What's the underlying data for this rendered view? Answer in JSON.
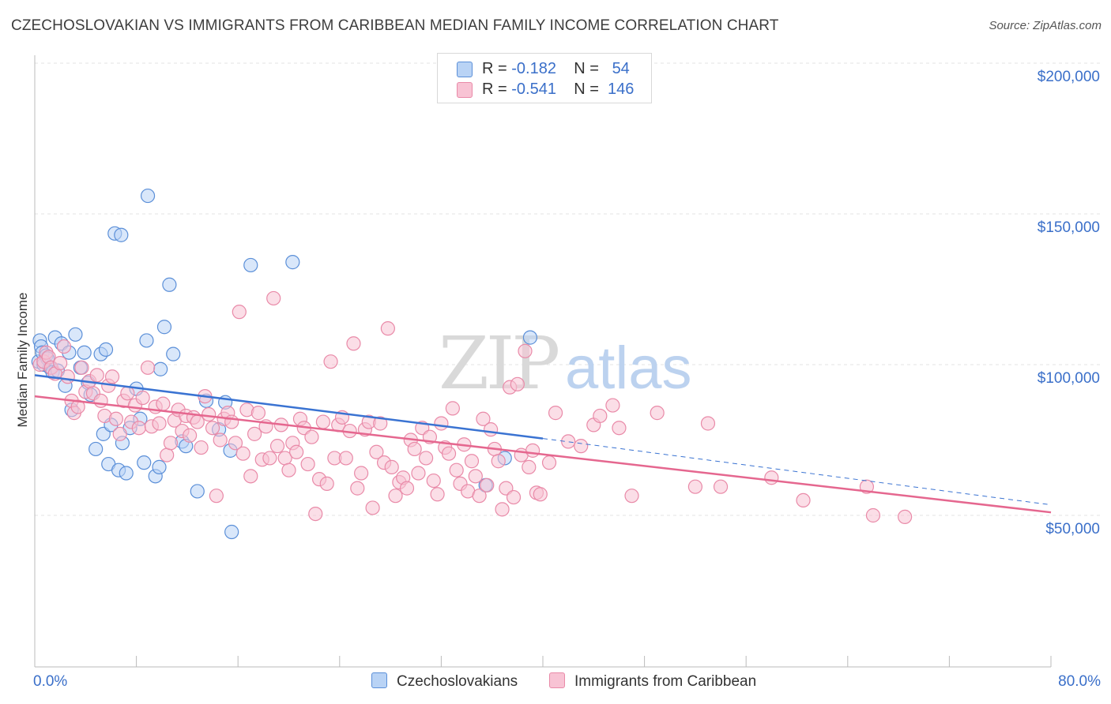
{
  "title": "CZECHOSLOVAKIAN VS IMMIGRANTS FROM CARIBBEAN MEDIAN FAMILY INCOME CORRELATION CHART",
  "source": "Source: ZipAtlas.com",
  "watermark": {
    "zip": "ZIP",
    "atlas": "atlas"
  },
  "legend_top": [
    {
      "r_label": "R =",
      "r_value": "-0.182",
      "n_label": "N =",
      "n_value": "54"
    },
    {
      "r_label": "R =",
      "r_value": "-0.541",
      "n_label": "N =",
      "n_value": "146"
    }
  ],
  "colors": {
    "czech_fill": "#b9d3f5",
    "czech_stroke": "#5b8fd8",
    "czech_line": "#3a73d2",
    "carib_fill": "#f8c3d4",
    "carib_stroke": "#e98aa8",
    "carib_line": "#e5678f",
    "axis_label": "#3a6fc9",
    "grid": "#e3e3e3"
  },
  "chart_data": {
    "type": "scatter",
    "title": "CZECHOSLOVAKIAN VS IMMIGRANTS FROM CARIBBEAN MEDIAN FAMILY INCOME CORRELATION CHART",
    "xlabel": "",
    "ylabel": "Median Family Income",
    "xlim": [
      0,
      80
    ],
    "ylim": [
      0,
      205000
    ],
    "x_tick_labels": [
      "0.0%",
      "80.0%"
    ],
    "y_ticks": [
      50000,
      100000,
      150000,
      200000
    ],
    "y_tick_labels": [
      "$50,000",
      "$100,000",
      "$150,000",
      "$200,000"
    ],
    "legend_position": "bottom",
    "grid": true,
    "series": [
      {
        "name": "Czechoslovakians",
        "r": -0.182,
        "n": 54,
        "trend": {
          "x0": 0,
          "y0": 96500,
          "x1": 40,
          "y1": 75500,
          "dashed_to_x": 80,
          "dashed_to_y": 53500
        },
        "points": [
          [
            0.3,
            101000
          ],
          [
            0.4,
            108000
          ],
          [
            0.5,
            106000
          ],
          [
            0.6,
            104000
          ],
          [
            0.7,
            100000
          ],
          [
            0.9,
            103000
          ],
          [
            1.0,
            102000
          ],
          [
            1.2,
            99000
          ],
          [
            1.4,
            97500
          ],
          [
            1.6,
            109000
          ],
          [
            1.8,
            98000
          ],
          [
            2.1,
            107000
          ],
          [
            2.4,
            93000
          ],
          [
            2.7,
            104000
          ],
          [
            2.9,
            85000
          ],
          [
            3.2,
            110000
          ],
          [
            3.6,
            99000
          ],
          [
            3.9,
            104000
          ],
          [
            4.2,
            94000
          ],
          [
            4.4,
            90000
          ],
          [
            4.8,
            72000
          ],
          [
            5.2,
            103500
          ],
          [
            5.4,
            77000
          ],
          [
            5.6,
            105000
          ],
          [
            5.8,
            67000
          ],
          [
            6.0,
            80000
          ],
          [
            6.3,
            143500
          ],
          [
            6.6,
            65000
          ],
          [
            6.8,
            143000
          ],
          [
            6.9,
            74000
          ],
          [
            7.2,
            64000
          ],
          [
            7.5,
            79000
          ],
          [
            8.0,
            92000
          ],
          [
            8.3,
            82000
          ],
          [
            8.6,
            67500
          ],
          [
            8.8,
            108000
          ],
          [
            8.9,
            156000
          ],
          [
            9.5,
            63000
          ],
          [
            9.8,
            66000
          ],
          [
            9.9,
            98500
          ],
          [
            10.2,
            112500
          ],
          [
            10.6,
            126500
          ],
          [
            10.9,
            103500
          ],
          [
            11.6,
            74500
          ],
          [
            11.9,
            73000
          ],
          [
            12.8,
            58000
          ],
          [
            13.5,
            88000
          ],
          [
            14.5,
            78500
          ],
          [
            15.0,
            87500
          ],
          [
            15.4,
            71500
          ],
          [
            15.5,
            44500
          ],
          [
            17.0,
            133000
          ],
          [
            20.3,
            134000
          ],
          [
            35.5,
            60000
          ],
          [
            37.0,
            69000
          ],
          [
            39.0,
            109000
          ]
        ]
      },
      {
        "name": "Immigrants from Caribbean",
        "r": -0.541,
        "n": 146,
        "trend": {
          "x0": 0,
          "y0": 89500,
          "x1": 80,
          "y1": 51000
        },
        "points": [
          [
            0.4,
            100000
          ],
          [
            0.7,
            101000
          ],
          [
            0.9,
            104000
          ],
          [
            1.1,
            102500
          ],
          [
            1.3,
            99000
          ],
          [
            1.6,
            97000
          ],
          [
            2.0,
            100500
          ],
          [
            2.3,
            106000
          ],
          [
            2.6,
            96000
          ],
          [
            2.9,
            88000
          ],
          [
            3.1,
            84000
          ],
          [
            3.4,
            86000
          ],
          [
            3.7,
            99000
          ],
          [
            4.0,
            91000
          ],
          [
            4.3,
            94500
          ],
          [
            4.6,
            90500
          ],
          [
            4.9,
            96500
          ],
          [
            5.2,
            88000
          ],
          [
            5.5,
            83000
          ],
          [
            5.8,
            93000
          ],
          [
            6.1,
            96000
          ],
          [
            6.4,
            82000
          ],
          [
            6.7,
            77000
          ],
          [
            7.0,
            88000
          ],
          [
            7.3,
            90500
          ],
          [
            7.6,
            81000
          ],
          [
            7.9,
            86500
          ],
          [
            8.2,
            79000
          ],
          [
            8.5,
            89000
          ],
          [
            8.9,
            99000
          ],
          [
            9.2,
            79500
          ],
          [
            9.5,
            86000
          ],
          [
            9.8,
            80500
          ],
          [
            10.1,
            87000
          ],
          [
            10.4,
            70000
          ],
          [
            10.7,
            74000
          ],
          [
            11.0,
            81500
          ],
          [
            11.3,
            85000
          ],
          [
            11.6,
            78000
          ],
          [
            11.9,
            83000
          ],
          [
            12.2,
            76500
          ],
          [
            12.5,
            82500
          ],
          [
            12.8,
            81000
          ],
          [
            13.1,
            72500
          ],
          [
            13.4,
            89500
          ],
          [
            13.7,
            83500
          ],
          [
            14.0,
            79000
          ],
          [
            14.3,
            56500
          ],
          [
            14.6,
            75000
          ],
          [
            14.9,
            82000
          ],
          [
            15.2,
            84000
          ],
          [
            15.5,
            81000
          ],
          [
            15.8,
            74000
          ],
          [
            16.1,
            117500
          ],
          [
            16.4,
            70500
          ],
          [
            16.7,
            85000
          ],
          [
            17.0,
            63000
          ],
          [
            17.3,
            77000
          ],
          [
            17.6,
            84000
          ],
          [
            17.9,
            68500
          ],
          [
            18.2,
            79500
          ],
          [
            18.5,
            69000
          ],
          [
            18.8,
            122000
          ],
          [
            19.1,
            73000
          ],
          [
            19.4,
            80000
          ],
          [
            19.7,
            69000
          ],
          [
            20.0,
            65000
          ],
          [
            20.3,
            74000
          ],
          [
            20.6,
            71000
          ],
          [
            20.9,
            82000
          ],
          [
            21.2,
            79000
          ],
          [
            21.5,
            67000
          ],
          [
            21.8,
            76000
          ],
          [
            22.1,
            50500
          ],
          [
            22.4,
            62000
          ],
          [
            22.7,
            81000
          ],
          [
            23.0,
            60500
          ],
          [
            23.3,
            101000
          ],
          [
            23.6,
            69000
          ],
          [
            23.9,
            80000
          ],
          [
            24.2,
            82500
          ],
          [
            24.5,
            69000
          ],
          [
            24.8,
            78000
          ],
          [
            25.1,
            107000
          ],
          [
            25.4,
            59000
          ],
          [
            25.7,
            64000
          ],
          [
            26.0,
            78500
          ],
          [
            26.3,
            81000
          ],
          [
            26.6,
            52500
          ],
          [
            26.9,
            71000
          ],
          [
            27.2,
            80500
          ],
          [
            27.5,
            67500
          ],
          [
            27.8,
            112000
          ],
          [
            28.1,
            66000
          ],
          [
            28.4,
            56500
          ],
          [
            28.7,
            61000
          ],
          [
            29.0,
            62500
          ],
          [
            29.3,
            59000
          ],
          [
            29.6,
            75000
          ],
          [
            29.9,
            72000
          ],
          [
            30.2,
            64000
          ],
          [
            30.5,
            79000
          ],
          [
            30.8,
            69000
          ],
          [
            31.1,
            76000
          ],
          [
            31.4,
            61500
          ],
          [
            31.7,
            57000
          ],
          [
            32.0,
            80500
          ],
          [
            32.3,
            72500
          ],
          [
            32.6,
            70500
          ],
          [
            32.9,
            85500
          ],
          [
            33.2,
            65000
          ],
          [
            33.5,
            60500
          ],
          [
            33.8,
            73500
          ],
          [
            34.1,
            58000
          ],
          [
            34.4,
            68000
          ],
          [
            34.7,
            63000
          ],
          [
            35.0,
            56500
          ],
          [
            35.3,
            82000
          ],
          [
            35.6,
            60000
          ],
          [
            35.9,
            78500
          ],
          [
            36.2,
            72000
          ],
          [
            36.5,
            68000
          ],
          [
            36.8,
            52000
          ],
          [
            37.1,
            59000
          ],
          [
            37.4,
            92500
          ],
          [
            37.7,
            56000
          ],
          [
            38.0,
            93500
          ],
          [
            38.3,
            70000
          ],
          [
            38.6,
            104500
          ],
          [
            38.9,
            66000
          ],
          [
            39.2,
            71500
          ],
          [
            39.5,
            57500
          ],
          [
            39.8,
            57000
          ],
          [
            40.5,
            67500
          ],
          [
            41.0,
            84000
          ],
          [
            42.0,
            74500
          ],
          [
            43.0,
            73000
          ],
          [
            44.0,
            80000
          ],
          [
            44.5,
            83000
          ],
          [
            45.5,
            86500
          ],
          [
            46.0,
            79000
          ],
          [
            47.0,
            56500
          ],
          [
            49.0,
            84000
          ],
          [
            52.0,
            59500
          ],
          [
            53.0,
            80500
          ],
          [
            54.0,
            59500
          ],
          [
            58.0,
            62500
          ],
          [
            60.5,
            55000
          ],
          [
            65.5,
            59500
          ],
          [
            66.0,
            50000
          ],
          [
            68.5,
            49500
          ]
        ]
      }
    ]
  },
  "bottom_legend": [
    "Czechoslovakians",
    "Immigrants from Caribbean"
  ]
}
